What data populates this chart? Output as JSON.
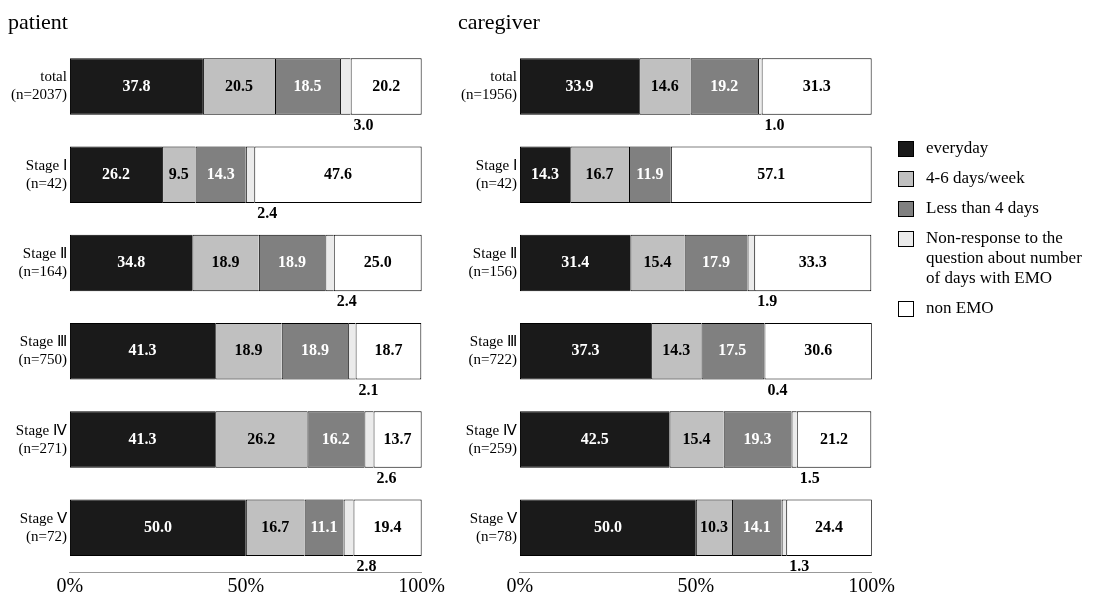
{
  "chart_data": [
    {
      "type": "bar",
      "orientation": "horizontal",
      "stacked": true,
      "title": "patient",
      "categories": [
        "total\n(n=2037)",
        "Stage Ⅰ\n(n=42)",
        "Stage Ⅱ\n(n=164)",
        "Stage Ⅲ\n(n=750)",
        "Stage Ⅳ\n(n=271)",
        "Stage Ⅴ\n(n=72)"
      ],
      "series": [
        {
          "color": "#1a1a1a",
          "values": [
            37.8,
            26.2,
            34.8,
            41.3,
            41.3,
            50.0
          ],
          "value_labels": [
            "37.8",
            "26.2",
            "34.8",
            "41.3",
            "41.3",
            "50.0"
          ]
        },
        {
          "color": "#c0c0c0",
          "values": [
            20.5,
            9.5,
            18.9,
            18.9,
            26.2,
            16.7
          ],
          "value_labels": [
            "20.5",
            "9.5",
            "18.9",
            "18.9",
            "26.2",
            "16.7"
          ]
        },
        {
          "color": "#808080",
          "values": [
            18.5,
            14.3,
            18.9,
            18.9,
            16.2,
            11.1
          ],
          "value_labels": [
            "18.5",
            "14.3",
            "18.9",
            "18.9",
            "16.2",
            "11.1"
          ]
        },
        {
          "color": "#ebebeb",
          "values": [
            3.0,
            2.4,
            2.4,
            2.1,
            2.6,
            2.8
          ],
          "value_labels": [
            "3.0",
            "2.4",
            "2.4",
            "2.1",
            "2.6",
            "2.8"
          ]
        },
        {
          "color": "#ffffff",
          "values": [
            20.2,
            47.6,
            25.0,
            18.7,
            13.7,
            19.4
          ],
          "value_labels": [
            "20.2",
            "47.6",
            "25.0",
            "18.7",
            "13.7",
            "19.4"
          ]
        }
      ],
      "xlim": [
        0,
        100
      ],
      "xticks": [
        {
          "value": 0,
          "label": "0%"
        },
        {
          "value": 50,
          "label": "50%"
        },
        {
          "value": 100,
          "label": "100%"
        }
      ],
      "grid": false,
      "legend": false
    },
    {
      "type": "bar",
      "orientation": "horizontal",
      "stacked": true,
      "title": "caregiver",
      "categories": [
        "total\n(n=1956)",
        "Stage Ⅰ\n(n=42)",
        "Stage Ⅱ\n(n=156)",
        "Stage Ⅲ\n(n=722)",
        "Stage Ⅳ\n(n=259)",
        "Stage Ⅴ\n(n=78)"
      ],
      "series": [
        {
          "name": "everyday",
          "color": "#1a1a1a",
          "values": [
            33.9,
            14.3,
            31.4,
            37.3,
            42.5,
            50.0
          ],
          "value_labels": [
            "33.9",
            "14.3",
            "31.4",
            "37.3",
            "42.5",
            "50.0"
          ]
        },
        {
          "name": "4-6 days/week",
          "color": "#c0c0c0",
          "values": [
            14.6,
            16.7,
            15.4,
            14.3,
            15.4,
            10.3
          ],
          "value_labels": [
            "14.6",
            "16.7",
            "15.4",
            "14.3",
            "15.4",
            "10.3"
          ]
        },
        {
          "name": "Less than 4 days",
          "color": "#808080",
          "values": [
            19.2,
            11.9,
            17.9,
            17.5,
            19.3,
            14.1
          ],
          "value_labels": [
            "19.2",
            "11.9",
            "17.9",
            "17.5",
            "19.3",
            "14.1"
          ]
        },
        {
          "name": "Non-response to the question about number of days with EMO",
          "color": "#ebebeb",
          "values": [
            1.0,
            0,
            1.9,
            0.4,
            1.5,
            1.3
          ],
          "value_labels": [
            "1.0",
            null,
            "1.9",
            "0.4",
            "1.5",
            "1.3"
          ]
        },
        {
          "name": "non EMO",
          "color": "#ffffff",
          "values": [
            31.3,
            57.1,
            33.3,
            30.6,
            21.2,
            24.4
          ],
          "value_labels": [
            "31.3",
            "57.1",
            "33.3",
            "30.6",
            "21.2",
            "24.4"
          ]
        }
      ],
      "xlim": [
        0,
        100
      ],
      "xticks": [
        {
          "value": 0,
          "label": "0%"
        },
        {
          "value": 50,
          "label": "50%"
        },
        {
          "value": 100,
          "label": "100%"
        }
      ],
      "grid": false,
      "legend": "right"
    }
  ]
}
